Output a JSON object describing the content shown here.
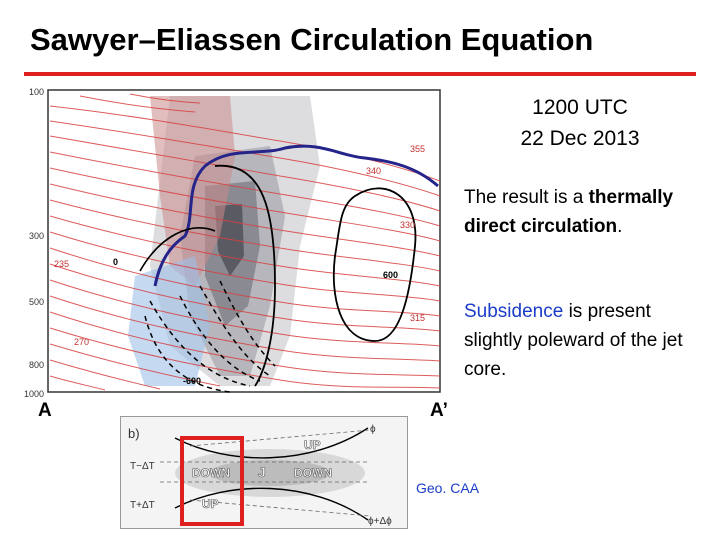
{
  "slide": {
    "title": "Sawyer–Eliassen Circulation Equation",
    "accent_color": "#e02020",
    "time_line1": "1200 UTC",
    "time_line2": "22 Dec 2013",
    "para1_part1": "The result is a ",
    "para1_bold": "thermally direct circulation",
    "para1_end": ".",
    "para2_highlight": "Subsidence",
    "para2_rest": " is present slightly poleward of the jet core.",
    "note": "Geo. CAA"
  },
  "figure_a": {
    "y_ticks": [
      "100",
      "300",
      "500",
      "800",
      "1000"
    ],
    "theta_labels": [
      "355",
      "340",
      "330",
      "315",
      "270",
      "235"
    ],
    "omega_labels": [
      "0",
      "600",
      "-600"
    ],
    "endpoint_left": "A",
    "endpoint_right": "A’"
  },
  "figure_b": {
    "panel_label": "b)",
    "labels_left": [
      "T−ΔT",
      "T+ΔT"
    ],
    "labels_right": [
      "ϕ",
      "ϕ+Δϕ"
    ],
    "up_top": "UP",
    "down_left": "DOWN",
    "jet": "J",
    "down_right": "DOWN",
    "up_bottom": "UP",
    "highlight_color": "#e02020"
  }
}
